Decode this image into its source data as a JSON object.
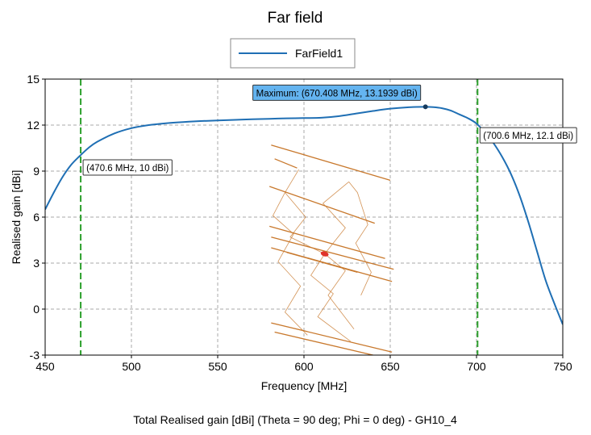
{
  "chart_data": {
    "type": "line",
    "title": "Far field",
    "xlabel": "Frequency [MHz]",
    "ylabel": "Realised gain [dBi]",
    "caption": "Total Realised gain [dBi] (Theta = 90 deg; Phi = 0 deg) - GH10_4",
    "xlim": [
      450,
      750
    ],
    "ylim": [
      -3,
      15
    ],
    "xticks": [
      "450",
      "500",
      "550",
      "600",
      "650",
      "700",
      "750"
    ],
    "yticks": [
      "-3",
      "0",
      "3",
      "6",
      "9",
      "12",
      "15"
    ],
    "grid": true,
    "legend_position": "top-center",
    "series": [
      {
        "name": "FarField1",
        "color": "#1f6fb4",
        "x": [
          450,
          455,
          460,
          465,
          470,
          475,
          480,
          490,
          500,
          510,
          520,
          530,
          540,
          550,
          560,
          570,
          580,
          590,
          600,
          610,
          620,
          630,
          640,
          650,
          660,
          670,
          675,
          680,
          685,
          690,
          695,
          700,
          705,
          710,
          715,
          720,
          725,
          730,
          735,
          740,
          745,
          750
        ],
        "y": [
          6.5,
          7.6,
          8.6,
          9.4,
          9.98,
          10.5,
          10.9,
          11.45,
          11.8,
          12.0,
          12.12,
          12.2,
          12.26,
          12.3,
          12.34,
          12.38,
          12.41,
          12.44,
          12.46,
          12.48,
          12.58,
          12.75,
          12.92,
          13.07,
          13.16,
          13.19,
          13.17,
          13.1,
          12.95,
          12.7,
          12.45,
          12.1,
          11.5,
          10.8,
          9.9,
          8.8,
          7.4,
          5.7,
          3.8,
          1.9,
          0.4,
          -1.0
        ]
      }
    ],
    "vertical_markers": [
      {
        "x": 470.6,
        "color": "#2ca02c"
      },
      {
        "x": 700.6,
        "color": "#2ca02c"
      }
    ],
    "annotations": [
      {
        "x": 670.408,
        "y": 13.1939,
        "label": "Maximum: (670.408 MHz, 13.1939 dBi)",
        "style": "highlight",
        "anchor": "above-left"
      },
      {
        "x": 470.6,
        "y": 10,
        "label": "(470.6 MHz, 10 dBi)",
        "style": "plain",
        "anchor": "below-right"
      },
      {
        "x": 700.6,
        "y": 12.1,
        "label": "(700.6 MHz, 12.1 dBi)",
        "style": "plain",
        "anchor": "below-right"
      }
    ],
    "inset_antenna": {
      "element_color": "#c8782c",
      "feed_color": "#e0342a",
      "feed_point": [
        612,
        3.6
      ],
      "elements": [
        [
          [
            581,
            10.7
          ],
          [
            650,
            8.4
          ]
        ],
        [
          [
            583,
            9.8
          ],
          [
            596,
            9.2
          ]
        ],
        [
          [
            580,
            8.0
          ],
          [
            641,
            5.6
          ]
        ],
        [
          [
            580,
            5.4
          ],
          [
            647,
            3.3
          ]
        ],
        [
          [
            581,
            4.7
          ],
          [
            652,
            2.6
          ]
        ],
        [
          [
            590,
            3.7
          ],
          [
            631,
            2.4
          ]
        ],
        [
          [
            581,
            4.0
          ],
          [
            651,
            1.8
          ]
        ],
        [
          [
            581,
            -0.9
          ],
          [
            651,
            -2.8
          ]
        ],
        [
          [
            583,
            -1.5
          ],
          [
            640,
            -3.0
          ]
        ]
      ],
      "zigzags": [
        [
          [
            597,
            9.1
          ],
          [
            589,
            7.6
          ],
          [
            601,
            6.0
          ],
          [
            592,
            4.7
          ],
          [
            612,
            3.6
          ],
          [
            604,
            2.2
          ],
          [
            617,
            1.0
          ],
          [
            608,
            -0.5
          ],
          [
            627,
            -2.1
          ]
        ],
        [
          [
            626,
            8.3
          ],
          [
            611,
            6.9
          ],
          [
            624,
            5.3
          ],
          [
            612,
            3.6
          ],
          [
            624,
            2.5
          ],
          [
            614,
            0.9
          ],
          [
            629,
            -1.3
          ]
        ],
        [
          [
            589,
            7.6
          ],
          [
            582,
            6.1
          ],
          [
            594,
            4.9
          ],
          [
            585,
            3.1
          ],
          [
            598,
            1.5
          ],
          [
            589,
            -0.2
          ],
          [
            602,
            -1.7
          ]
        ],
        [
          [
            626,
            8.3
          ],
          [
            631,
            7.6
          ],
          [
            637,
            5.5
          ],
          [
            630,
            4.3
          ],
          [
            639,
            2.4
          ],
          [
            633,
            0.9
          ]
        ]
      ]
    }
  }
}
